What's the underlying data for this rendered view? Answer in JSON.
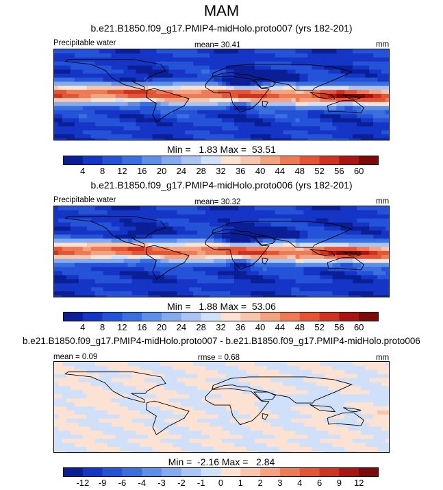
{
  "title": "MAM",
  "panels": [
    {
      "case": "b.e21.B1850.f09_g17.PMIP4-midHolo.proto007 (yrs 182-201)",
      "variable": "Precipitable water",
      "mean_label": "mean=  30.41",
      "units": "mm",
      "minmax": "Min =   1.83 Max =  53.51",
      "colorbar": {
        "labels": [
          "4",
          "8",
          "12",
          "16",
          "20",
          "24",
          "28",
          "32",
          "36",
          "40",
          "44",
          "48",
          "52",
          "56",
          "60"
        ],
        "colors": [
          "#0a1f96",
          "#1535c6",
          "#2453d8",
          "#3a6fe0",
          "#5d8ee8",
          "#85abef",
          "#aac5f4",
          "#d1e0f9",
          "#fbe2d3",
          "#f8c6ad",
          "#f4a27f",
          "#ee7b55",
          "#e45535",
          "#cf3220",
          "#aa1414",
          "#7d0a0a"
        ]
      }
    },
    {
      "case": "b.e21.B1850.f09_g17.PMIP4-midHolo.proto006 (yrs 182-201)",
      "variable": "Precipitable water",
      "mean_label": "mean=  30.32",
      "units": "mm",
      "minmax": "Min =   1.88 Max =  53.06",
      "colorbar": {
        "labels": [
          "4",
          "8",
          "12",
          "16",
          "20",
          "24",
          "28",
          "32",
          "36",
          "40",
          "44",
          "48",
          "52",
          "56",
          "60"
        ],
        "colors": [
          "#0a1f96",
          "#1535c6",
          "#2453d8",
          "#3a6fe0",
          "#5d8ee8",
          "#85abef",
          "#aac5f4",
          "#d1e0f9",
          "#fbe2d3",
          "#f8c6ad",
          "#f4a27f",
          "#ee7b55",
          "#e45535",
          "#cf3220",
          "#aa1414",
          "#7d0a0a"
        ]
      }
    },
    {
      "case": "b.e21.B1850.f09_g17.PMIP4-midHolo.proto007 - b.e21.B1850.f09_g17.PMIP4-midHolo.proto006",
      "mean_label": "mean =  0.09",
      "rmse_label": "rmse =  0.68",
      "units": "mm",
      "minmax": "Min =  -2.16 Max =   2.84",
      "colorbar": {
        "labels": [
          "-12",
          "-9",
          "-6",
          "-4",
          "-3",
          "-2",
          "-1",
          "0",
          "1",
          "2",
          "3",
          "4",
          "6",
          "9",
          "12"
        ],
        "colors": [
          "#0a1f96",
          "#1535c6",
          "#2453d8",
          "#3a6fe0",
          "#5d8ee8",
          "#85abef",
          "#aac5f4",
          "#d1e0f9",
          "#fbe2d3",
          "#f8c6ad",
          "#f4a27f",
          "#ee7b55",
          "#e45535",
          "#cf3220",
          "#aa1414",
          "#7d0a0a"
        ]
      }
    }
  ]
}
